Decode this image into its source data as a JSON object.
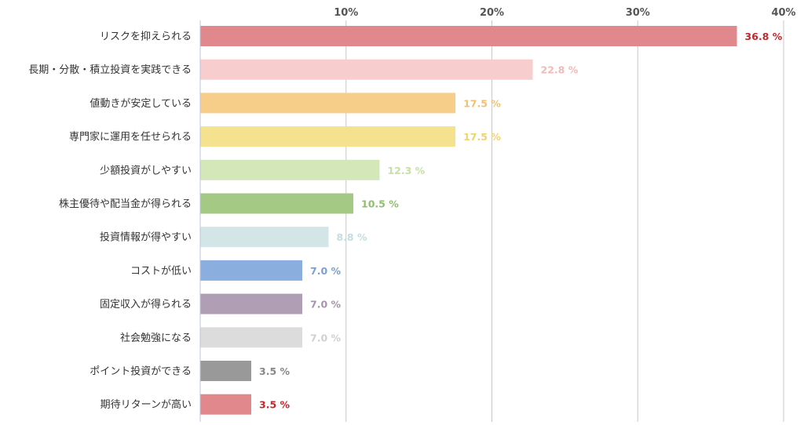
{
  "chart_data": {
    "type": "bar",
    "orientation": "horizontal",
    "title": "",
    "xlabel": "",
    "ylabel": "",
    "xlim": [
      0,
      40
    ],
    "ticks": [
      {
        "value": 10,
        "label": "10%"
      },
      {
        "value": 20,
        "label": "20%"
      },
      {
        "value": 30,
        "label": "30%"
      },
      {
        "value": 40,
        "label": "40%"
      }
    ],
    "tick_position": "top",
    "grid": true,
    "legend": "none",
    "unit_suffix": " %",
    "bars": [
      {
        "category": "リスクを抑えられる",
        "value": 36.8,
        "color": "#e0888c",
        "label_color": "#c0282e"
      },
      {
        "category": "長期・分散・積立投資を実践できる",
        "value": 22.8,
        "color": "#f7cdcd",
        "label_color": "#f2b9b9"
      },
      {
        "category": "値動きが安定している",
        "value": 17.5,
        "color": "#f7cd8a",
        "label_color": "#f3c06f"
      },
      {
        "category": "専門家に運用を任せられる",
        "value": 17.5,
        "color": "#f5e28f",
        "label_color": "#f0d469"
      },
      {
        "category": "少額投資がしやすい",
        "value": 12.3,
        "color": "#d4e7b8",
        "label_color": "#c7e0a3"
      },
      {
        "category": "株主優待や配当金が得られる",
        "value": 10.5,
        "color": "#a3c985",
        "label_color": "#8fbe6c"
      },
      {
        "category": "投資情報が得やすい",
        "value": 8.8,
        "color": "#d3e5e6",
        "label_color": "#c5dde0"
      },
      {
        "category": "コストが低い",
        "value": 7.0,
        "color": "#8aafdf",
        "label_color": "#7aa1d4"
      },
      {
        "category": "固定収入が得られる",
        "value": 7.0,
        "color": "#b09fb4",
        "label_color": "#a793ab"
      },
      {
        "category": "社会勉強になる",
        "value": 7.0,
        "color": "#dcdcdc",
        "label_color": "#d0d0d0"
      },
      {
        "category": "ポイント投資ができる",
        "value": 3.5,
        "color": "#999999",
        "label_color": "#888888"
      },
      {
        "category": "期待リターンが高い",
        "value": 3.5,
        "color": "#e0888c",
        "label_color": "#c0282e"
      }
    ]
  }
}
